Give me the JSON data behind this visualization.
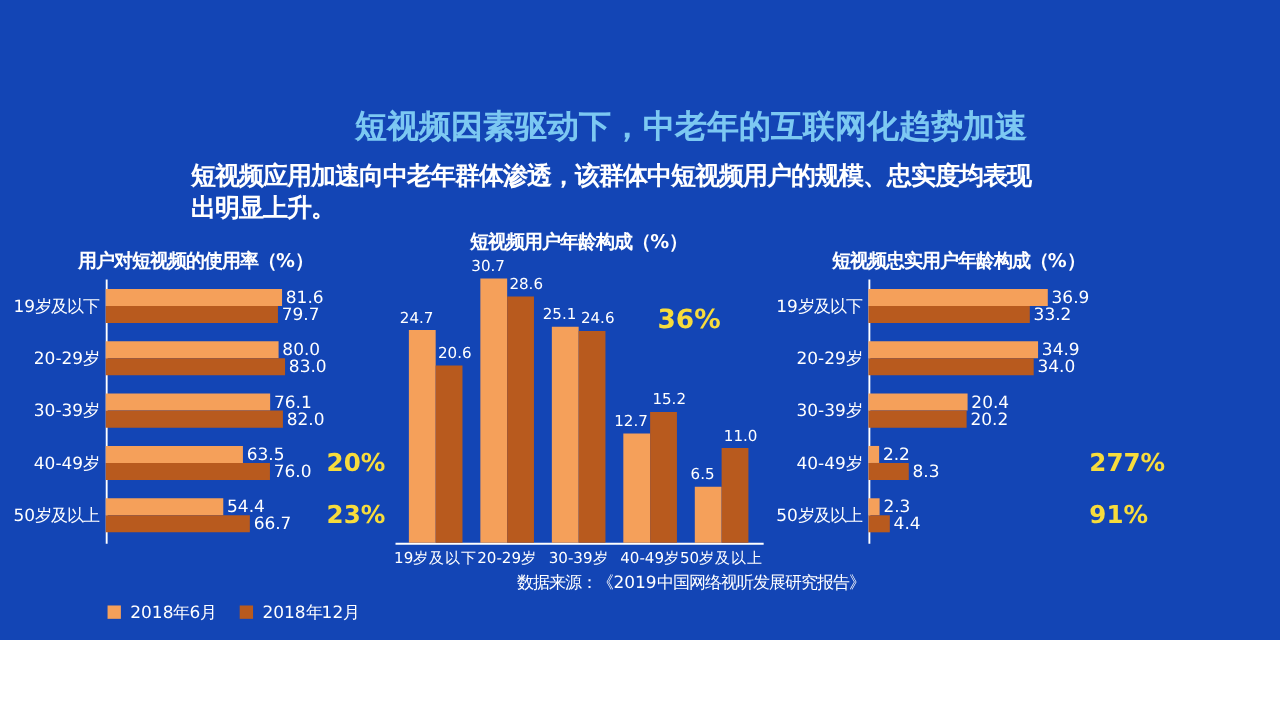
{
  "chart_data": [
    {
      "type": "other",
      "title": "短视频因素驱动下，中老年的互联网化趋势加速",
      "subtitle": "短视频应用加速向中老年群体渗透，该群体中短视频用户的规模、忠实度均表现出明显上升。",
      "annotations": [
        "数据来源：《2019中国网络视听发展研究报告》"
      ]
    },
    {
      "type": "bar",
      "orientation": "horizontal",
      "title": "用户对短视频的使用率（%）",
      "categories": [
        "19岁及以下",
        "20-29岁",
        "30-39岁",
        "40-49岁",
        "50岁及以上"
      ],
      "series": [
        {
          "name": "2018年6月",
          "color": "#f5a05a",
          "values": [
            81.6,
            80.0,
            76.1,
            63.5,
            54.4
          ],
          "value_labels": [
            "81.6",
            "80.0",
            "76.1",
            "63.5",
            "54.4"
          ]
        },
        {
          "name": "2018年12月",
          "color": "#b85a1e",
          "values": [
            79.7,
            83.0,
            82.0,
            76.0,
            66.7
          ],
          "value_labels": [
            "79.7",
            "83.0",
            "82.0",
            "76.0",
            "66.7"
          ]
        }
      ],
      "legend": "bottom",
      "grid": false,
      "annotations": [
        "20%",
        "23%"
      ]
    },
    {
      "type": "bar",
      "title": "短视频用户年龄构成（%）",
      "categories": [
        "19岁及以下",
        "20-29岁",
        "30-39岁",
        "40-49岁",
        "50岁及以上"
      ],
      "series": [
        {
          "name": "2018年6月",
          "color": "#f5a05a",
          "values": [
            24.7,
            30.7,
            25.1,
            12.7,
            6.5
          ],
          "value_labels": [
            "24.7",
            "30.7",
            "25.1",
            "12.7",
            "6.5"
          ]
        },
        {
          "name": "2018年12月",
          "color": "#b85a1e",
          "values": [
            20.6,
            28.6,
            24.6,
            15.2,
            11.0
          ],
          "value_labels": [
            "20.6",
            "28.6",
            "24.6",
            "15.2",
            "11.0"
          ]
        }
      ],
      "legend": "bottom",
      "grid": false,
      "annotations": [
        "36%"
      ]
    },
    {
      "type": "bar",
      "orientation": "horizontal",
      "title": "短视频忠实用户年龄构成（%）",
      "categories": [
        "19岁及以下",
        "20-29岁",
        "30-39岁",
        "40-49岁",
        "50岁及以上"
      ],
      "series": [
        {
          "name": "2018年6月",
          "color": "#f5a05a",
          "values": [
            36.9,
            34.9,
            20.4,
            2.2,
            2.3
          ],
          "value_labels": [
            "36.9",
            "34.9",
            "20.4",
            "2.2",
            "2.3"
          ]
        },
        {
          "name": "2018年12月",
          "color": "#b85a1e",
          "values": [
            33.2,
            34.0,
            20.2,
            8.3,
            4.4
          ],
          "value_labels": [
            "33.2",
            "34.0",
            "20.2",
            "8.3",
            "4.4"
          ]
        }
      ],
      "legend": "bottom",
      "grid": false,
      "annotations": [
        "277%",
        "91%"
      ]
    }
  ]
}
